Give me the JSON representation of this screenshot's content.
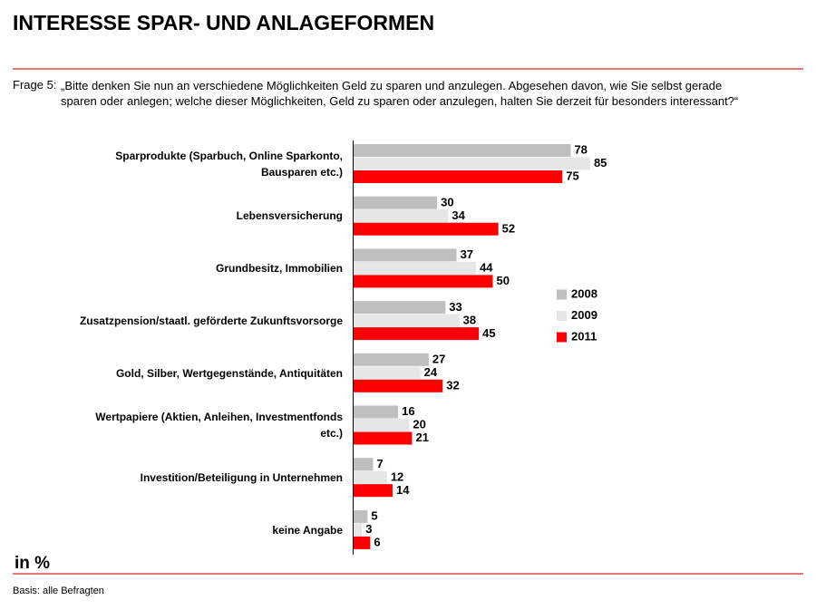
{
  "chart_data": {
    "type": "hbar",
    "title": "INTERESSE SPAR- UND ANLAGEFORMEN",
    "question_label": "Frage 5:",
    "question": "„Bitte denken Sie nun an verschiedene Möglichkeiten Geld zu sparen und anzulegen. Abgesehen davon, wie Sie selbst gerade sparen oder anlegen; welche dieser Möglichkeiten, Geld zu sparen oder anzulegen, halten Sie derzeit für besonders interessant?“",
    "unit": "in %",
    "note": "Basis: alle Befragten",
    "categories": [
      "Sparprodukte (Sparbuch, Online Sparkonto, Bausparen etc.)",
      "Lebensversicherung",
      "Grundbesitz, Immobilien",
      "Zusatzpension/staatl. geförderte Zukunftsvorsorge",
      "Gold, Silber, Wertgegenstände, Antiquitäten",
      "Wertpapiere (Aktien, Anleihen, Investmentfonds etc.)",
      "Investition/Beteiligung in Unternehmen",
      "keine Angabe"
    ],
    "series": [
      {
        "name": "2008",
        "color": "#bfbfbf",
        "values": [
          78,
          30,
          37,
          33,
          27,
          16,
          7,
          5
        ]
      },
      {
        "name": "2009",
        "color": "#e6e6e6",
        "values": [
          85,
          34,
          44,
          38,
          24,
          20,
          12,
          3
        ]
      },
      {
        "name": "2011",
        "color": "#ff0000",
        "values": [
          75,
          52,
          50,
          45,
          32,
          21,
          14,
          6
        ]
      }
    ],
    "xlim": [
      0,
      100
    ]
  }
}
